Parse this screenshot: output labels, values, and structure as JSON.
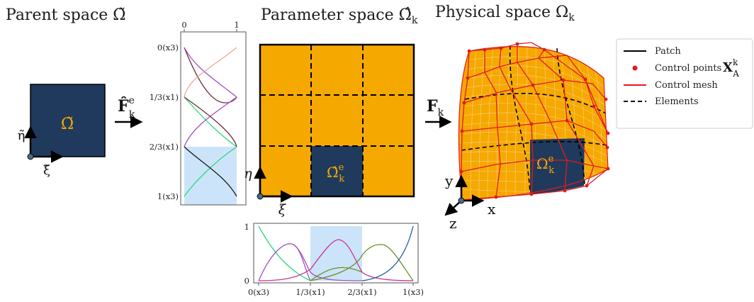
{
  "titles": {
    "parent": "Parent space Ω̃",
    "parameter": "Parameter space Ω̂",
    "parameter_sub": "k",
    "physical": "Physical space Ω",
    "physical_sub": "k"
  },
  "parent": {
    "domain_label": "Ω̃",
    "axis_h": "ξ̃",
    "axis_v": "η̃"
  },
  "map_param": {
    "main": "F̂",
    "sup": "e",
    "sub": "k"
  },
  "map_phys": {
    "main": "F",
    "sub": "k"
  },
  "param": {
    "element_label": "Ω̂",
    "element_sup": "e",
    "element_sub": "k",
    "axis_h": "ξ",
    "axis_v": "η"
  },
  "physical": {
    "element_label": "Ω",
    "element_sup": "e",
    "element_sub": "k",
    "axis_x": "x",
    "axis_y": "y",
    "axis_z": "z"
  },
  "basis_v": {
    "top_ticks": [
      "0",
      "1"
    ],
    "side_ticks": [
      "0(x3)",
      "1/3(x1)",
      "2/3(x1)",
      "1(x3)"
    ]
  },
  "basis_h": {
    "y_ticks": [
      "1",
      "0"
    ],
    "x_ticks": [
      "0(x3)",
      "1/3(x1)",
      "2/3(x1)",
      "1(x3)"
    ]
  },
  "legend": {
    "patch": "Patch",
    "control_points": "Control points",
    "control_points_symbol": "X",
    "control_points_sup": "k",
    "control_points_sub": "A",
    "control_mesh": "Control mesh",
    "elements": "Elements"
  },
  "colors": {
    "navy": "#1f3a5c",
    "orange": "#f5a800",
    "red": "#e41a1c",
    "highlight": "#cce4f9",
    "curves": [
      "#2bd97a",
      "#a04fc3",
      "#cc3399",
      "#6b8e23",
      "#1f5fa8",
      "#f4a590",
      "#6b2a3a"
    ]
  }
}
